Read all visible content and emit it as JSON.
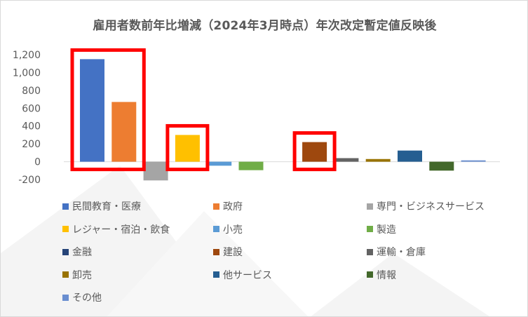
{
  "chart_data": {
    "type": "bar",
    "title": "雇用者数前年比増減（2024年3月時点）年次改定暫定値反映後",
    "xlabel": "",
    "ylabel": "",
    "ylim": [
      -200,
      1200
    ],
    "yticks": [
      "-200",
      "0",
      "200",
      "400",
      "600",
      "800",
      "1,000",
      "1,200"
    ],
    "grid": false,
    "legend_position": "bottom",
    "series": [
      {
        "name": "民間教育・医療",
        "value": 1150,
        "color": "#4472C4"
      },
      {
        "name": "政府",
        "value": 670,
        "color": "#ED7D31"
      },
      {
        "name": "専門・ビジネスサービス",
        "value": -210,
        "color": "#A5A5A5"
      },
      {
        "name": "レジャー・宿泊・飲食",
        "value": 300,
        "color": "#FFC000"
      },
      {
        "name": "小売",
        "value": -45,
        "color": "#5B9BD5"
      },
      {
        "name": "製造",
        "value": -95,
        "color": "#70AD47"
      },
      {
        "name": "金融",
        "value": 0,
        "color": "#264478"
      },
      {
        "name": "建設",
        "value": 220,
        "color": "#9E480E"
      },
      {
        "name": "運輸・倉庫",
        "value": 40,
        "color": "#636363"
      },
      {
        "name": "卸売",
        "value": 30,
        "color": "#997300"
      },
      {
        "name": "他サービス",
        "value": 125,
        "color": "#255E91"
      },
      {
        "name": "情報",
        "value": -100,
        "color": "#43682B"
      },
      {
        "name": "その他",
        "value": 15,
        "color": "#698ED0"
      }
    ],
    "highlighted": [
      "民間教育・医療",
      "政府",
      "レジャー・宿泊・飲食",
      "建設"
    ],
    "highlight_color": "#FF0000"
  }
}
